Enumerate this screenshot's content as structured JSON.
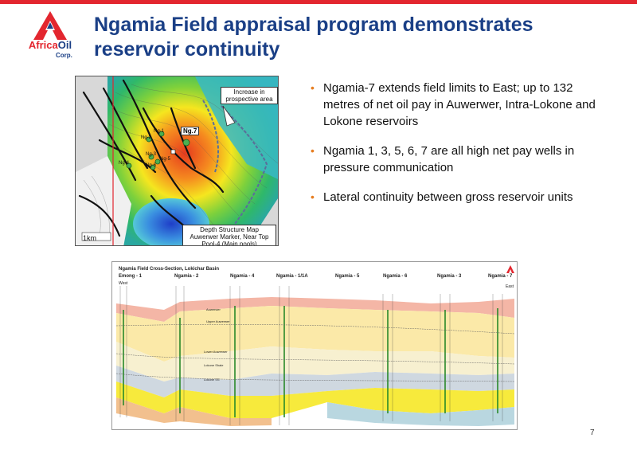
{
  "logo": {
    "africa": "Africa",
    "oil": "Oil",
    "corp": "Corp."
  },
  "title": "Ngamia Field appraisal program demonstrates reservoir continuity",
  "map": {
    "callout_increase": "Increase in prospective area",
    "callout_legend": "Depth Structure Map Auwerwer Marker, Near Top Pool-4 (Main pools)",
    "ng7": "Ng.7",
    "scale": "1km",
    "well_labels": [
      "Ng-1",
      "Ng-2",
      "Ng-3",
      "Ng-5",
      "Ng-6",
      "Ng-4"
    ]
  },
  "bullets": [
    "Ngamia-7 extends field limits to East; up to 132 metres of net oil pay in Auwerwer, Intra-Lokone and Lokone reservoirs",
    "Ngamia 1, 3, 5, 6, 7 are all high net pay wells in pressure communication",
    "Lateral continuity between gross reservoir units"
  ],
  "cross_section": {
    "title": "Ngamia Field Cross-Section, Lokichar Basin",
    "wells": [
      "Emong - 1",
      "Ngamia - 2",
      "Ngamia - 4",
      "Ngamia - 1/1A",
      "Ngamia - 5",
      "Ngamia - 6",
      "Ngamia - 3",
      "Ngamia - 7"
    ],
    "west": "West",
    "east": "East",
    "units": [
      "Auwerwer",
      "Upper Auwerwer",
      "Lower Auwerwer",
      "Lokone Shale",
      "Lokone SS"
    ]
  },
  "page_number": "7",
  "colors": {
    "title_blue": "#1a3f86",
    "brand_red": "#e3262f",
    "bullet_orange": "#e67d20"
  }
}
